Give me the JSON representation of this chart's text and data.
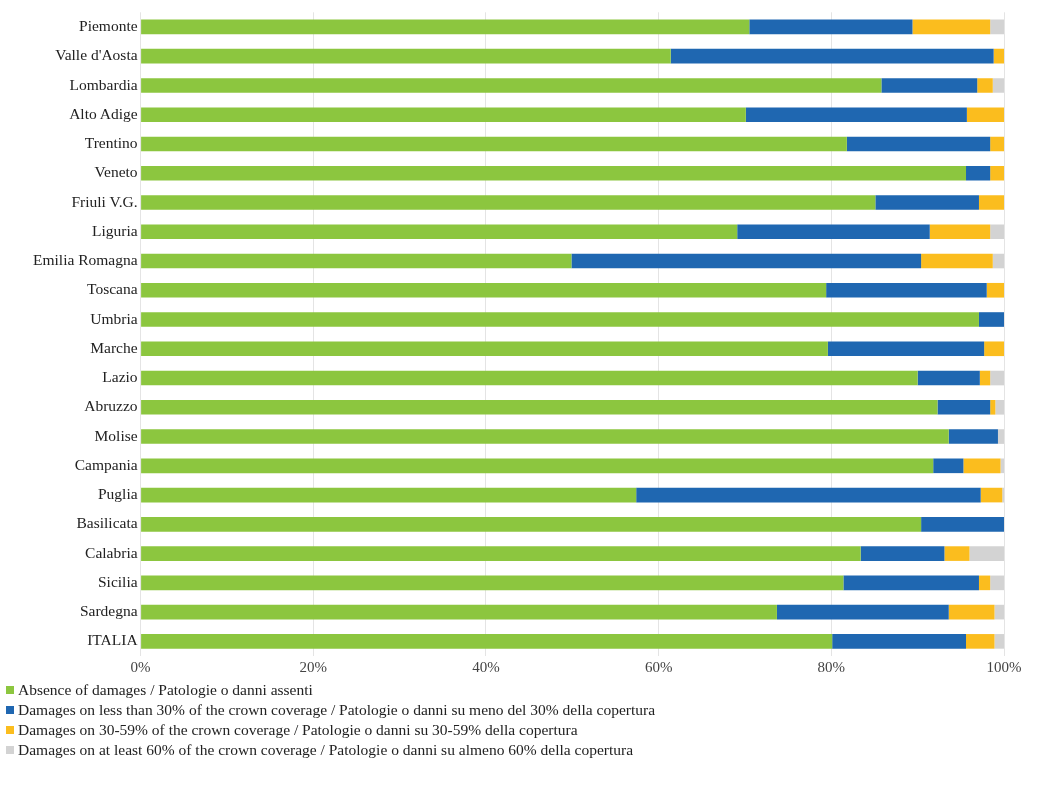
{
  "chart_data": {
    "type": "bar",
    "orientation": "horizontal",
    "stacked": true,
    "categories": [
      "Piemonte",
      "Valle d'Aosta",
      "Lombardia",
      "Alto Adige",
      "Trentino",
      "Veneto",
      "Friuli V.G.",
      "Liguria",
      "Emilia Romagna",
      "Toscana",
      "Umbria",
      "Marche",
      "Lazio",
      "Abruzzo",
      "Molise",
      "Campania",
      "Puglia",
      "Basilicata",
      "Calabria",
      "Sicilia",
      "Sardegna",
      "ITALIA"
    ],
    "series": [
      {
        "name": "Absence of damages / Patologie o danni assenti",
        "color": "#8cc63f",
        "values": [
          70.5,
          61.4,
          85.8,
          70.1,
          81.8,
          95.6,
          85.1,
          69.1,
          49.9,
          79.4,
          97.1,
          79.6,
          90.0,
          92.3,
          93.6,
          91.8,
          57.4,
          90.4,
          83.4,
          81.4,
          73.7,
          80.1
        ]
      },
      {
        "name": "Damages on less than 30% of the crown coverage / Patologie o danni su meno del 30% della copertura",
        "color": "#1f67b1",
        "values": [
          18.9,
          37.4,
          11.1,
          25.6,
          16.6,
          2.8,
          12.0,
          22.3,
          40.5,
          18.6,
          2.9,
          18.1,
          7.2,
          6.1,
          5.7,
          3.5,
          39.9,
          9.6,
          9.7,
          15.7,
          19.9,
          15.5
        ]
      },
      {
        "name": "Damages on 30-59% of the crown coverage / Patologie o danni su 30-59% della copertura",
        "color": "#fbbd1e",
        "values": [
          9.0,
          1.2,
          1.8,
          4.3,
          1.6,
          1.6,
          2.9,
          7.0,
          8.3,
          2.0,
          0,
          2.3,
          1.2,
          0.6,
          0,
          4.3,
          2.5,
          0,
          2.9,
          1.3,
          5.3,
          3.3
        ]
      },
      {
        "name": "Damages on at least 60% of the crown coverage / Patologie o danni su almeno 60% della copertura",
        "color": "#d3d3d3",
        "values": [
          1.6,
          0,
          1.3,
          0,
          0,
          0,
          0,
          1.6,
          1.3,
          0,
          0,
          0,
          1.6,
          1.0,
          0.7,
          0.4,
          0.2,
          0,
          4.0,
          1.6,
          1.1,
          1.1
        ]
      }
    ],
    "xlim": [
      0,
      100
    ],
    "xticks": [
      {
        "value": 0,
        "label": "0%"
      },
      {
        "value": 20,
        "label": "20%"
      },
      {
        "value": 40,
        "label": "40%"
      },
      {
        "value": 60,
        "label": "60%"
      },
      {
        "value": 80,
        "label": "80%"
      },
      {
        "value": 100,
        "label": "100%"
      }
    ],
    "grid": "x",
    "legend": "bottom"
  }
}
